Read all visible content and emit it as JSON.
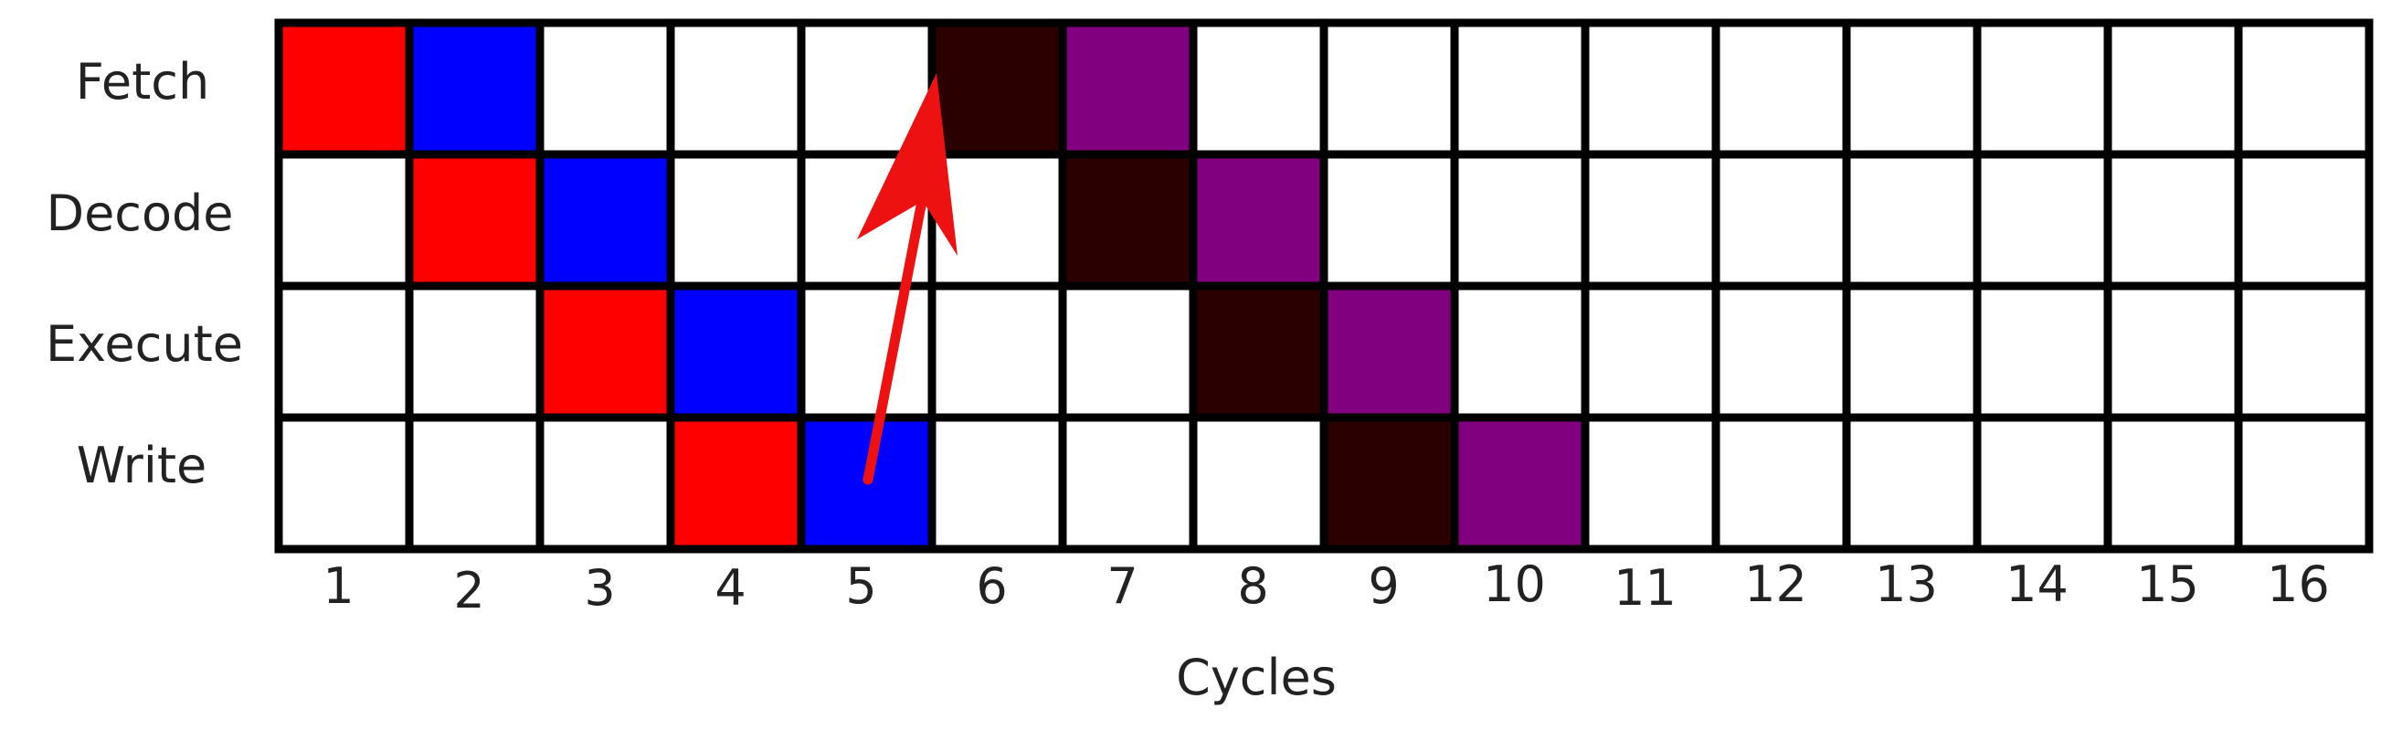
{
  "stages": [
    "Fetch",
    "Decode",
    "Execute",
    "Write"
  ],
  "cycles": [
    "1",
    "2",
    "3",
    "4",
    "5",
    "6",
    "7",
    "8",
    "9",
    "10",
    "11",
    "12",
    "13",
    "14",
    "15",
    "16"
  ],
  "xlabel": "Cycles",
  "colors": {
    "red": "#ff0000",
    "blue": "#0000ff",
    "dark": "#2a0000",
    "purple": "#800080",
    "empty": "#ffffff",
    "grid_line": "#000000",
    "arrow": "#ee1111"
  },
  "instructions": [
    {
      "color": "red",
      "cells": [
        [
          0,
          1
        ],
        [
          1,
          2
        ],
        [
          2,
          3
        ],
        [
          3,
          4
        ]
      ]
    },
    {
      "color": "blue",
      "cells": [
        [
          0,
          2
        ],
        [
          1,
          3
        ],
        [
          2,
          4
        ],
        [
          3,
          5
        ]
      ]
    },
    {
      "color": "dark",
      "cells": [
        [
          0,
          6
        ],
        [
          1,
          7
        ],
        [
          2,
          8
        ],
        [
          3,
          9
        ]
      ]
    },
    {
      "color": "purple",
      "cells": [
        [
          0,
          7
        ],
        [
          1,
          8
        ],
        [
          2,
          9
        ],
        [
          3,
          10
        ]
      ]
    }
  ],
  "arrow": {
    "from": {
      "stage": "Write",
      "cycle": 5
    },
    "to": {
      "stage": "Fetch",
      "cycle": 6
    }
  }
}
